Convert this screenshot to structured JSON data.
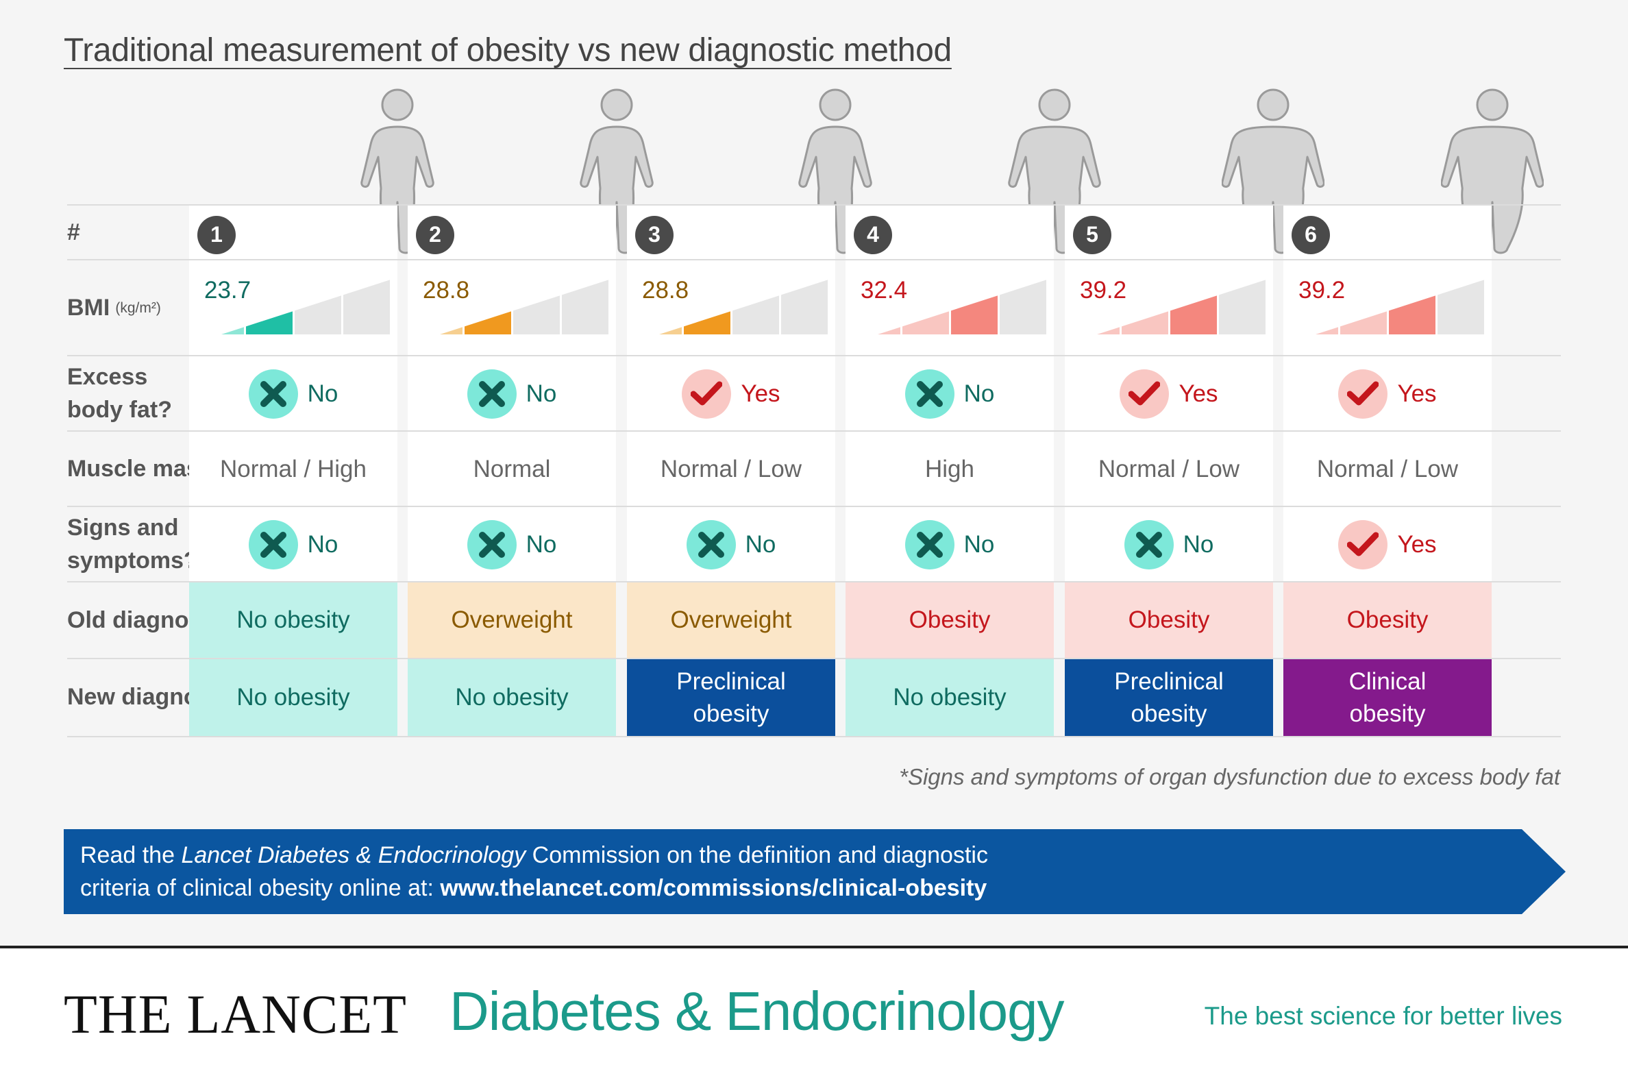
{
  "title": "Traditional measurement of obesity vs new diagnostic method",
  "row_labels": {
    "number": "#",
    "bmi": "BMI",
    "bmi_unit": "(kg/m²)",
    "excess_fat_line1": "Excess",
    "excess_fat_line2": "body fat?",
    "muscle_mass": "Muscle mass",
    "signs_line1": "Signs and",
    "signs_line2": "symptoms?*",
    "old_diagnosis": "Old diagnosis",
    "new_diagnosis": "New diagnosis"
  },
  "body_shapes": [
    "slim",
    "slim",
    "slim",
    "round",
    "heavy",
    "heavy"
  ],
  "cases": [
    {
      "number": "1",
      "bmi": "23.7",
      "bmi_level": 2,
      "bmi_scheme": "teal",
      "excess_fat": "No",
      "muscle_mass": "Normal / High",
      "signs": "No",
      "old_diagnosis": "No obesity",
      "old_style": "teal",
      "new_diagnosis": "No obesity",
      "new_style": "teal"
    },
    {
      "number": "2",
      "bmi": "28.8",
      "bmi_level": 2,
      "bmi_scheme": "orange",
      "excess_fat": "No",
      "muscle_mass": "Normal",
      "signs": "No",
      "old_diagnosis": "Overweight",
      "old_style": "orange",
      "new_diagnosis": "No obesity",
      "new_style": "teal"
    },
    {
      "number": "3",
      "bmi": "28.8",
      "bmi_level": 2,
      "bmi_scheme": "orange",
      "excess_fat": "Yes",
      "muscle_mass": "Normal / Low",
      "signs": "No",
      "old_diagnosis": "Overweight",
      "old_style": "orange",
      "new_diagnosis": "Preclinical obesity",
      "new_style": "blue"
    },
    {
      "number": "4",
      "bmi": "32.4",
      "bmi_level": 3,
      "bmi_scheme": "red",
      "excess_fat": "No",
      "muscle_mass": "High",
      "signs": "No",
      "old_diagnosis": "Obesity",
      "old_style": "red",
      "new_diagnosis": "No obesity",
      "new_style": "teal"
    },
    {
      "number": "5",
      "bmi": "39.2",
      "bmi_level": 3,
      "bmi_scheme": "red",
      "excess_fat": "Yes",
      "muscle_mass": "Normal / Low",
      "signs": "No",
      "old_diagnosis": "Obesity",
      "old_style": "red",
      "new_diagnosis": "Preclinical obesity",
      "new_style": "blue"
    },
    {
      "number": "6",
      "bmi": "39.2",
      "bmi_level": 3,
      "bmi_scheme": "red",
      "excess_fat": "Yes",
      "muscle_mass": "Normal / Low",
      "signs": "Yes",
      "old_diagnosis": "Obesity",
      "old_style": "red",
      "new_diagnosis": "Clinical obesity",
      "new_style": "purple"
    }
  ],
  "colors": {
    "teal_text": "#0f6b60",
    "teal_bg": "#bff2ea",
    "teal_bar_light": "#8ee6d6",
    "teal_bar_dark": "#1fbfa5",
    "orange_text": "#8a5a00",
    "orange_bg": "#fbe6c8",
    "orange_bar_light": "#f6cf90",
    "orange_bar_dark": "#f0991f",
    "red_text": "#c4161c",
    "red_bg": "#fbdcd9",
    "red_bar_light": "#f9c6c1",
    "red_bar_dark": "#f4877e",
    "blue_bg": "#0b4f9c",
    "purple_bg": "#841a8c",
    "bar_empty": "#e6e6e6",
    "banner": "#0b56a0",
    "brand_teal": "#1b9a8a"
  },
  "footnote": "*Signs and symptoms of organ dysfunction due to excess body fat",
  "banner": {
    "line1_prefix": "Read the ",
    "line1_italic": "Lancet Diabetes & Endocrinology",
    "line1_suffix": " Commission on the definition and diagnostic",
    "line2_prefix": "criteria of clinical obesity online at: ",
    "url": "www.thelancet.com/commissions/clinical-obesity"
  },
  "footer": {
    "brand": "THE LANCET",
    "journal": "Diabetes & Endocrinology",
    "tagline": "The best science for better lives"
  },
  "icons": {
    "no": "cross-icon",
    "yes": "check-icon"
  }
}
